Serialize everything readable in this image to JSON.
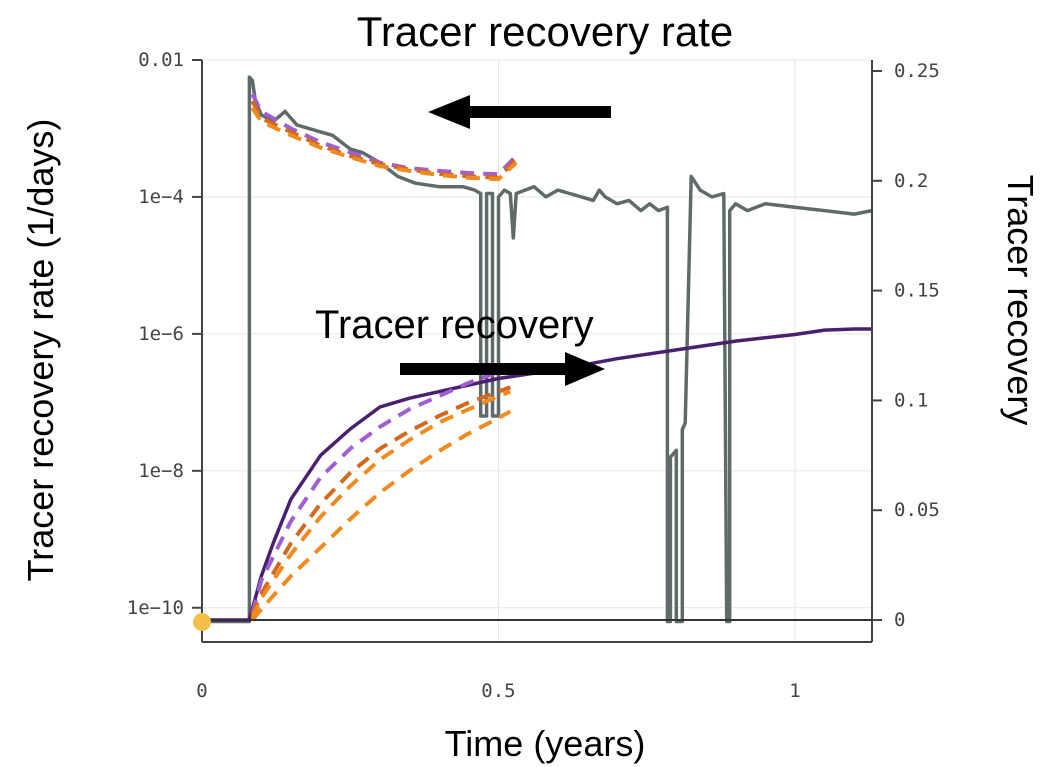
{
  "chart_data": {
    "type": "line",
    "title": "Tracer recovery rate",
    "xlabel": "Time (years)",
    "ylabel_left": "Tracer recovery rate (1/days)",
    "ylabel_right": "Tracer recovery",
    "x_ticks": [
      "0",
      "0.5",
      "1"
    ],
    "x_tick_values": [
      0,
      0.5,
      1
    ],
    "xlim": [
      0,
      1.13
    ],
    "y_left_scale": "log",
    "y_left_ticks": [
      "0.01",
      "1e−4",
      "1e−6",
      "1e−8",
      "1e−10"
    ],
    "y_left_tick_exponents": [
      -2,
      -4,
      -6,
      -8,
      -10
    ],
    "y_left_exponent_range": [
      -10.5,
      -2
    ],
    "y_right_ticks": [
      "0",
      "0.05",
      "0.1",
      "0.15",
      "0.2",
      "0.25"
    ],
    "y_right_tick_values": [
      0,
      0.05,
      0.1,
      0.15,
      0.2,
      0.25
    ],
    "y_right_range": [
      -0.01,
      0.255
    ],
    "grid": true,
    "annotations": [
      {
        "text": "Tracer recovery",
        "arrow": "right"
      },
      {
        "text": "Tracer recovery rate",
        "arrow": "left"
      }
    ],
    "colors": {
      "observed_rate": "#5f6b6b",
      "observed_recovery": "#4b1f6f",
      "purple_dashed": "#a05fd0",
      "orange_dashed": "#f08a1e",
      "orange_dark": "#d2691e",
      "baseline": "#333333",
      "marker": "#f5c04a"
    },
    "series": [
      {
        "axis": "left",
        "style": "solid",
        "color": "#5f6b6b",
        "points": [
          [
            0,
            -10.2
          ],
          [
            0.08,
            -10.2
          ],
          [
            0.08,
            -2.25
          ],
          [
            0.085,
            -2.3
          ],
          [
            0.09,
            -2.6
          ],
          [
            0.1,
            -2.8
          ],
          [
            0.12,
            -2.9
          ],
          [
            0.14,
            -2.75
          ],
          [
            0.16,
            -2.95
          ],
          [
            0.2,
            -3.05
          ],
          [
            0.22,
            -3.1
          ],
          [
            0.25,
            -3.3
          ],
          [
            0.27,
            -3.35
          ],
          [
            0.3,
            -3.5
          ],
          [
            0.33,
            -3.7
          ],
          [
            0.36,
            -3.8
          ],
          [
            0.4,
            -3.85
          ],
          [
            0.44,
            -3.85
          ],
          [
            0.46,
            -3.9
          ],
          [
            0.47,
            -3.95
          ],
          [
            0.47,
            -7.2
          ],
          [
            0.48,
            -7.2
          ],
          [
            0.48,
            -3.95
          ],
          [
            0.49,
            -3.95
          ],
          [
            0.49,
            -7.2
          ],
          [
            0.5,
            -7.2
          ],
          [
            0.5,
            -4.0
          ],
          [
            0.51,
            -3.9
          ],
          [
            0.52,
            -3.95
          ],
          [
            0.525,
            -4.6
          ],
          [
            0.53,
            -3.95
          ],
          [
            0.56,
            -3.85
          ],
          [
            0.58,
            -4.0
          ],
          [
            0.6,
            -3.9
          ],
          [
            0.62,
            -3.95
          ],
          [
            0.64,
            -4.0
          ],
          [
            0.66,
            -4.05
          ],
          [
            0.67,
            -3.9
          ],
          [
            0.68,
            -4.0
          ],
          [
            0.7,
            -4.1
          ],
          [
            0.72,
            -4.05
          ],
          [
            0.74,
            -4.2
          ],
          [
            0.755,
            -4.1
          ],
          [
            0.77,
            -4.2
          ],
          [
            0.785,
            -4.15
          ],
          [
            0.785,
            -10.2
          ],
          [
            0.79,
            -10.2
          ],
          [
            0.79,
            -7.8
          ],
          [
            0.8,
            -7.7
          ],
          [
            0.8,
            -10.2
          ],
          [
            0.81,
            -10.2
          ],
          [
            0.81,
            -7.4
          ],
          [
            0.815,
            -7.3
          ],
          [
            0.825,
            -3.7
          ],
          [
            0.84,
            -3.9
          ],
          [
            0.86,
            -4.0
          ],
          [
            0.88,
            -3.95
          ],
          [
            0.885,
            -10.2
          ],
          [
            0.89,
            -10.2
          ],
          [
            0.89,
            -4.2
          ],
          [
            0.9,
            -4.1
          ],
          [
            0.92,
            -4.2
          ],
          [
            0.95,
            -4.1
          ],
          [
            1.0,
            -4.15
          ],
          [
            1.05,
            -4.2
          ],
          [
            1.1,
            -4.25
          ],
          [
            1.13,
            -4.2
          ]
        ]
      },
      {
        "axis": "left",
        "style": "dashed",
        "color": "#a05fd0",
        "points": [
          [
            0.085,
            -2.5
          ],
          [
            0.1,
            -2.75
          ],
          [
            0.15,
            -3.0
          ],
          [
            0.2,
            -3.2
          ],
          [
            0.25,
            -3.35
          ],
          [
            0.3,
            -3.5
          ],
          [
            0.35,
            -3.58
          ],
          [
            0.4,
            -3.62
          ],
          [
            0.45,
            -3.65
          ],
          [
            0.5,
            -3.67
          ],
          [
            0.53,
            -3.4
          ]
        ]
      },
      {
        "axis": "left",
        "style": "dashed",
        "color": "#d2691e",
        "points": [
          [
            0.085,
            -2.6
          ],
          [
            0.1,
            -2.85
          ],
          [
            0.15,
            -3.05
          ],
          [
            0.2,
            -3.25
          ],
          [
            0.25,
            -3.4
          ],
          [
            0.3,
            -3.52
          ],
          [
            0.35,
            -3.6
          ],
          [
            0.4,
            -3.66
          ],
          [
            0.45,
            -3.7
          ],
          [
            0.5,
            -3.72
          ],
          [
            0.53,
            -3.45
          ]
        ]
      },
      {
        "axis": "left",
        "style": "dashed",
        "color": "#f08a1e",
        "points": [
          [
            0.085,
            -2.7
          ],
          [
            0.1,
            -2.9
          ],
          [
            0.15,
            -3.1
          ],
          [
            0.2,
            -3.28
          ],
          [
            0.25,
            -3.42
          ],
          [
            0.3,
            -3.55
          ],
          [
            0.35,
            -3.62
          ],
          [
            0.4,
            -3.68
          ],
          [
            0.45,
            -3.72
          ],
          [
            0.5,
            -3.74
          ],
          [
            0.53,
            -3.5
          ]
        ]
      },
      {
        "axis": "right",
        "style": "solid",
        "color": "#4b1f6f",
        "points": [
          [
            0,
            0
          ],
          [
            0.08,
            0
          ],
          [
            0.1,
            0.02
          ],
          [
            0.12,
            0.035
          ],
          [
            0.15,
            0.055
          ],
          [
            0.2,
            0.075
          ],
          [
            0.25,
            0.087
          ],
          [
            0.3,
            0.097
          ],
          [
            0.35,
            0.101
          ],
          [
            0.4,
            0.104
          ],
          [
            0.45,
            0.107
          ],
          [
            0.5,
            0.11
          ],
          [
            0.6,
            0.114
          ],
          [
            0.7,
            0.119
          ],
          [
            0.8,
            0.123
          ],
          [
            0.9,
            0.127
          ],
          [
            1.0,
            0.13
          ],
          [
            1.05,
            0.132
          ],
          [
            1.1,
            0.1325
          ],
          [
            1.13,
            0.1325
          ]
        ]
      },
      {
        "axis": "right",
        "style": "dashed",
        "color": "#a05fd0",
        "points": [
          [
            0.085,
            0.003
          ],
          [
            0.1,
            0.018
          ],
          [
            0.15,
            0.045
          ],
          [
            0.2,
            0.065
          ],
          [
            0.25,
            0.078
          ],
          [
            0.3,
            0.088
          ],
          [
            0.35,
            0.096
          ],
          [
            0.4,
            0.102
          ],
          [
            0.45,
            0.108
          ],
          [
            0.5,
            0.113
          ],
          [
            0.52,
            0.115
          ]
        ]
      },
      {
        "axis": "right",
        "style": "dashed",
        "color": "#d2691e",
        "points": [
          [
            0.085,
            0.002
          ],
          [
            0.1,
            0.012
          ],
          [
            0.15,
            0.035
          ],
          [
            0.2,
            0.053
          ],
          [
            0.25,
            0.067
          ],
          [
            0.3,
            0.078
          ],
          [
            0.35,
            0.086
          ],
          [
            0.4,
            0.093
          ],
          [
            0.45,
            0.099
          ],
          [
            0.5,
            0.104
          ],
          [
            0.52,
            0.106
          ]
        ]
      },
      {
        "axis": "right",
        "style": "dashed",
        "color": "#f08a1e",
        "points": [
          [
            0.085,
            0.001
          ],
          [
            0.1,
            0.01
          ],
          [
            0.15,
            0.03
          ],
          [
            0.2,
            0.047
          ],
          [
            0.25,
            0.061
          ],
          [
            0.3,
            0.073
          ],
          [
            0.35,
            0.082
          ],
          [
            0.4,
            0.09
          ],
          [
            0.45,
            0.096
          ],
          [
            0.5,
            0.102
          ],
          [
            0.52,
            0.104
          ]
        ]
      },
      {
        "axis": "right",
        "style": "dashed",
        "color": "#f08a1e",
        "points": [
          [
            0.085,
            0.0
          ],
          [
            0.1,
            0.005
          ],
          [
            0.15,
            0.02
          ],
          [
            0.2,
            0.033
          ],
          [
            0.25,
            0.046
          ],
          [
            0.3,
            0.058
          ],
          [
            0.35,
            0.068
          ],
          [
            0.4,
            0.077
          ],
          [
            0.45,
            0.085
          ],
          [
            0.5,
            0.092
          ],
          [
            0.52,
            0.095
          ]
        ]
      }
    ]
  }
}
